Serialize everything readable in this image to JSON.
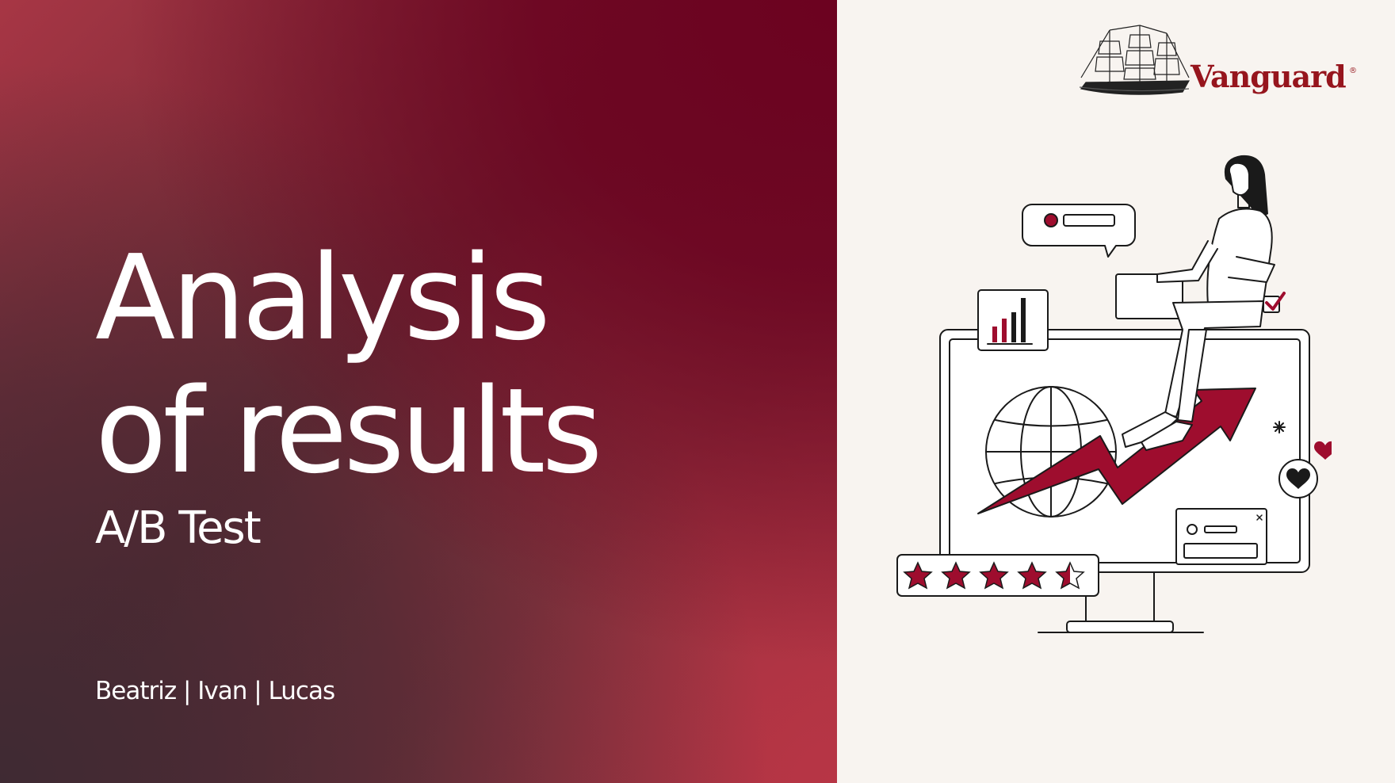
{
  "slide": {
    "title_lines": [
      "Analysis",
      "of results"
    ],
    "subtitle": "A/B Test",
    "authors": "Beatriz | Ivan | Lucas"
  },
  "brand": {
    "name": "Vanguard",
    "registered_mark": "®"
  },
  "colors": {
    "accent": "#9e0d2e",
    "panel_background": "#f8f4f0",
    "text_light": "#ffffff",
    "logo_red": "#96151d"
  },
  "illustration": {
    "rating_stars": 4.5,
    "rating_max": 5
  }
}
